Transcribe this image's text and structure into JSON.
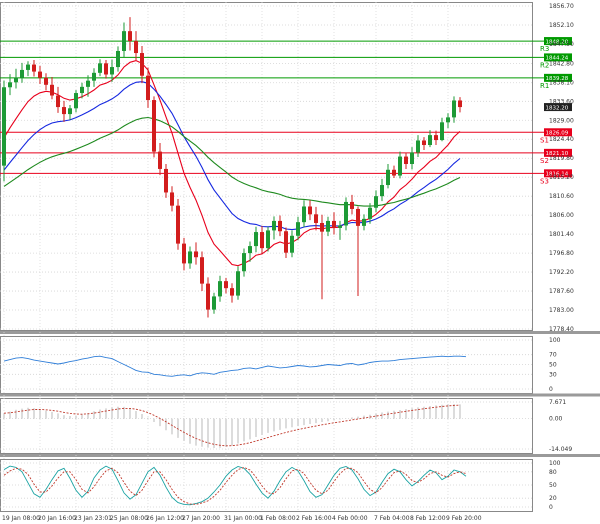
{
  "colors": {
    "support": "#e8001c",
    "resistance": "#009a00",
    "ma_fast": "#e8001c",
    "ma_slow": "#1528e0",
    "ma_long": "#1e8a1e",
    "bull": "#1d9a36",
    "bear": "#d21d1d",
    "rsi": "#2f7ed8",
    "macd": "#c0392b",
    "stoch_k": "#1aa3a3",
    "stoch_d": "#c0392b",
    "current": "#222222"
  },
  "chart_data": [
    {
      "type": "candlestick",
      "panel": "price",
      "current_price": "1832.20",
      "y_ticks": [
        "1856.70",
        "1852.10",
        "1847.50",
        "1842.80",
        "1838.10",
        "1833.60",
        "1829.00",
        "1824.40",
        "1819.80",
        "1815.20",
        "1810.60",
        "1806.00",
        "1801.40",
        "1796.80",
        "1792.20",
        "1787.60",
        "1783.00",
        "1778.40"
      ],
      "x_ticks": [
        "19 Jan 08:00",
        "20 Jan 16:00",
        "23 Jan 23:01",
        "25 Jan 08:00",
        "26 Jan 12:00",
        "27 Jan 20:00",
        "31 Jan 00:00",
        "1 Feb 08:00",
        "2 Feb 16:00",
        "4 Feb 00:00",
        "7 Feb 04:00",
        "8 Feb 12:00",
        "9 Feb 20:00"
      ],
      "levels": [
        {
          "name": "R3",
          "value": 1848.2,
          "label": "1848.20",
          "kind": "resistance"
        },
        {
          "name": "R2",
          "value": 1844.24,
          "label": "1844.24",
          "kind": "resistance"
        },
        {
          "name": "R1",
          "value": 1839.28,
          "label": "1839.28",
          "kind": "resistance"
        },
        {
          "name": "S1",
          "value": 1826.09,
          "label": "1826.09",
          "kind": "support"
        },
        {
          "name": "S2",
          "value": 1821.1,
          "label": "1821.10",
          "kind": "support"
        },
        {
          "name": "S3",
          "value": 1816.14,
          "label": "1816.14",
          "kind": "support"
        }
      ],
      "candles": [
        [
          1818.0,
          1838.6,
          1814.2,
          1837.0
        ],
        [
          1837.0,
          1840.2,
          1835.1,
          1838.2
        ],
        [
          1838.2,
          1841.5,
          1836.7,
          1839.3
        ],
        [
          1839.3,
          1842.9,
          1838.1,
          1841.2
        ],
        [
          1841.2,
          1843.3,
          1839.7,
          1842.5
        ],
        [
          1842.5,
          1843.6,
          1839.6,
          1840.8
        ],
        [
          1840.8,
          1842.2,
          1837.8,
          1839.3
        ],
        [
          1839.3,
          1840.4,
          1836.3,
          1837.6
        ],
        [
          1837.6,
          1839.5,
          1834.1,
          1835.0
        ],
        [
          1835.0,
          1837.1,
          1830.8,
          1832.2
        ],
        [
          1832.2,
          1833.7,
          1828.6,
          1830.5
        ],
        [
          1830.5,
          1832.7,
          1829.1,
          1831.9
        ],
        [
          1831.9,
          1836.3,
          1830.9,
          1835.6
        ],
        [
          1835.6,
          1838.1,
          1834.3,
          1837.1
        ],
        [
          1837.1,
          1839.9,
          1834.7,
          1838.6
        ],
        [
          1838.6,
          1841.6,
          1837.1,
          1840.5
        ],
        [
          1840.5,
          1843.8,
          1839.7,
          1842.8
        ],
        [
          1842.8,
          1843.6,
          1839.1,
          1840.1
        ],
        [
          1840.1,
          1843.7,
          1838.3,
          1841.9
        ],
        [
          1841.9,
          1846.9,
          1840.8,
          1845.8
        ],
        [
          1845.8,
          1852.7,
          1844.3,
          1850.6
        ],
        [
          1850.6,
          1854.0,
          1845.9,
          1848.2
        ],
        [
          1848.2,
          1850.6,
          1843.6,
          1845.3
        ],
        [
          1845.3,
          1847.0,
          1838.0,
          1839.8
        ],
        [
          1839.8,
          1841.8,
          1832.0,
          1833.9
        ],
        [
          1833.9,
          1834.8,
          1820.0,
          1821.4
        ],
        [
          1821.4,
          1823.5,
          1815.7,
          1817.2
        ],
        [
          1817.2,
          1818.4,
          1810.2,
          1811.5
        ],
        [
          1811.5,
          1813.0,
          1806.9,
          1808.3
        ],
        [
          1808.3,
          1809.9,
          1797.6,
          1799.1
        ],
        [
          1799.1,
          1800.5,
          1792.6,
          1794.3
        ],
        [
          1794.3,
          1798.4,
          1793.0,
          1797.2
        ],
        [
          1797.2,
          1799.4,
          1794.0,
          1795.8
        ],
        [
          1795.8,
          1797.2,
          1787.6,
          1789.4
        ],
        [
          1789.4,
          1790.9,
          1781.2,
          1783.1
        ],
        [
          1783.1,
          1787.2,
          1782.1,
          1786.3
        ],
        [
          1786.3,
          1791.3,
          1785.0,
          1790.0
        ],
        [
          1790.0,
          1790.8,
          1787.0,
          1788.3
        ],
        [
          1788.3,
          1789.5,
          1784.8,
          1786.5
        ],
        [
          1786.5,
          1793.6,
          1785.5,
          1792.4
        ],
        [
          1792.4,
          1797.9,
          1791.1,
          1796.8
        ],
        [
          1796.8,
          1799.6,
          1794.7,
          1798.5
        ],
        [
          1798.5,
          1803.2,
          1797.0,
          1801.9
        ],
        [
          1801.9,
          1803.4,
          1796.7,
          1798.0
        ],
        [
          1798.0,
          1803.2,
          1797.2,
          1802.3
        ],
        [
          1802.3,
          1805.7,
          1800.1,
          1804.6
        ],
        [
          1804.6,
          1805.9,
          1800.9,
          1802.1
        ],
        [
          1802.1,
          1803.0,
          1795.6,
          1796.9
        ],
        [
          1796.9,
          1802.3,
          1795.8,
          1801.0
        ],
        [
          1801.0,
          1805.6,
          1799.9,
          1804.3
        ],
        [
          1804.3,
          1809.6,
          1803.1,
          1808.1
        ],
        [
          1808.1,
          1809.6,
          1804.8,
          1806.2
        ],
        [
          1806.2,
          1808.0,
          1802.3,
          1804.1
        ],
        [
          1804.1,
          1806.1,
          1785.6,
          1802.0
        ],
        [
          1802.0,
          1805.6,
          1800.9,
          1804.6
        ],
        [
          1804.6,
          1806.7,
          1801.3,
          1802.9
        ],
        [
          1802.9,
          1804.6,
          1800.0,
          1803.5
        ],
        [
          1803.5,
          1810.3,
          1802.3,
          1809.2
        ],
        [
          1809.2,
          1810.9,
          1806.2,
          1807.5
        ],
        [
          1807.5,
          1808.1,
          1786.4,
          1803.4
        ],
        [
          1803.4,
          1806.2,
          1802.3,
          1805.1
        ],
        [
          1805.1,
          1808.9,
          1803.9,
          1807.8
        ],
        [
          1807.8,
          1812.0,
          1806.7,
          1810.6
        ],
        [
          1810.6,
          1814.8,
          1809.4,
          1813.3
        ],
        [
          1813.3,
          1818.4,
          1812.5,
          1817.0
        ],
        [
          1817.0,
          1818.0,
          1815.0,
          1815.6
        ],
        [
          1815.6,
          1821.4,
          1814.9,
          1820.2
        ],
        [
          1820.2,
          1821.2,
          1817.2,
          1818.4
        ],
        [
          1818.4,
          1822.5,
          1817.1,
          1821.2
        ],
        [
          1821.2,
          1825.4,
          1820.1,
          1824.1
        ],
        [
          1824.1,
          1824.9,
          1821.8,
          1823.0
        ],
        [
          1823.0,
          1826.6,
          1822.5,
          1825.4
        ],
        [
          1825.4,
          1826.5,
          1823.0,
          1824.2
        ],
        [
          1824.2,
          1829.6,
          1823.9,
          1828.5
        ],
        [
          1828.5,
          1830.7,
          1827.1,
          1829.7
        ],
        [
          1829.7,
          1834.8,
          1828.4,
          1833.8
        ],
        [
          1833.8,
          1834.6,
          1830.9,
          1832.2
        ]
      ]
    },
    {
      "type": "line",
      "panel": "oscillator-1",
      "y_ticks": [
        "100",
        "70",
        "50",
        "30",
        "0"
      ],
      "values": [
        57,
        60,
        63,
        64,
        62,
        59,
        57,
        55,
        53,
        51,
        53,
        56,
        58,
        61,
        63,
        66,
        67,
        64,
        62,
        56,
        50,
        44,
        38,
        35,
        34,
        30,
        29,
        27,
        26,
        28,
        29,
        27,
        31,
        33,
        32,
        30,
        34,
        36,
        38,
        39,
        42,
        43,
        41,
        44,
        47,
        45,
        43,
        44,
        46,
        48,
        47,
        45,
        46,
        48,
        50,
        49,
        48,
        51,
        52,
        49,
        51,
        54,
        56,
        57,
        57,
        58,
        60,
        61,
        62,
        63,
        64,
        65,
        66,
        67,
        66,
        67,
        67,
        66
      ]
    },
    {
      "type": "histogram",
      "panel": "oscillator-2",
      "y_ticks": [
        "7.671",
        "0.00",
        "-14.049"
      ],
      "values": [
        2.5,
        3.2,
        4.1,
        4.6,
        5.0,
        4.8,
        4.3,
        3.7,
        3.1,
        2.4,
        1.6,
        1.2,
        1.4,
        1.9,
        2.6,
        3.4,
        4.2,
        4.7,
        5.2,
        5.5,
        5.4,
        4.7,
        3.5,
        2.1,
        0.4,
        -1.6,
        -3.5,
        -5.4,
        -7.3,
        -8.9,
        -10.3,
        -11.6,
        -12.5,
        -13.0,
        -13.4,
        -13.6,
        -13.5,
        -13.1,
        -12.4,
        -11.5,
        -10.5,
        -9.6,
        -8.5,
        -7.6,
        -6.6,
        -5.9,
        -5.2,
        -4.5,
        -4.0,
        -3.5,
        -3.0,
        -2.5,
        -2.1,
        -1.6,
        -1.2,
        -0.8,
        -0.4,
        0.1,
        0.5,
        0.9,
        1.4,
        1.8,
        2.3,
        2.8,
        3.2,
        3.6,
        4.0,
        4.4,
        4.8,
        5.2,
        5.5,
        5.8,
        6.1,
        6.4,
        6.6,
        6.7,
        6.6
      ]
    },
    {
      "type": "line",
      "panel": "oscillator-3",
      "y_ticks": [
        "100",
        "80",
        "50",
        "20",
        "0"
      ],
      "values": [
        85,
        93,
        90,
        80,
        55,
        30,
        22,
        40,
        62,
        82,
        88,
        65,
        38,
        22,
        36,
        66,
        84,
        93,
        86,
        60,
        32,
        18,
        28,
        54,
        80,
        90,
        72,
        45,
        22,
        10,
        6,
        5,
        8,
        12,
        20,
        34,
        50,
        70,
        84,
        92,
        88,
        74,
        52,
        32,
        20,
        36,
        60,
        80,
        90,
        82,
        60,
        35,
        22,
        28,
        50,
        72,
        88,
        92,
        84,
        64,
        40,
        26,
        34,
        56,
        76,
        86,
        80,
        62,
        48,
        58,
        72,
        84,
        78,
        62,
        70,
        84,
        80,
        70
      ],
      "series_2": [
        72,
        82,
        88,
        86,
        74,
        52,
        34,
        34,
        48,
        66,
        80,
        80,
        62,
        40,
        32,
        46,
        66,
        82,
        88,
        78,
        56,
        36,
        26,
        38,
        60,
        80,
        80,
        62,
        40,
        22,
        12,
        7,
        6,
        9,
        14,
        24,
        38,
        56,
        72,
        85,
        90,
        84,
        68,
        48,
        32,
        30,
        44,
        64,
        82,
        86,
        76,
        56,
        38,
        30,
        38,
        58,
        76,
        88,
        88,
        78,
        58,
        40,
        32,
        44,
        62,
        78,
        82,
        74,
        60,
        56,
        64,
        76,
        80,
        72,
        68,
        76,
        80,
        76
      ]
    }
  ]
}
